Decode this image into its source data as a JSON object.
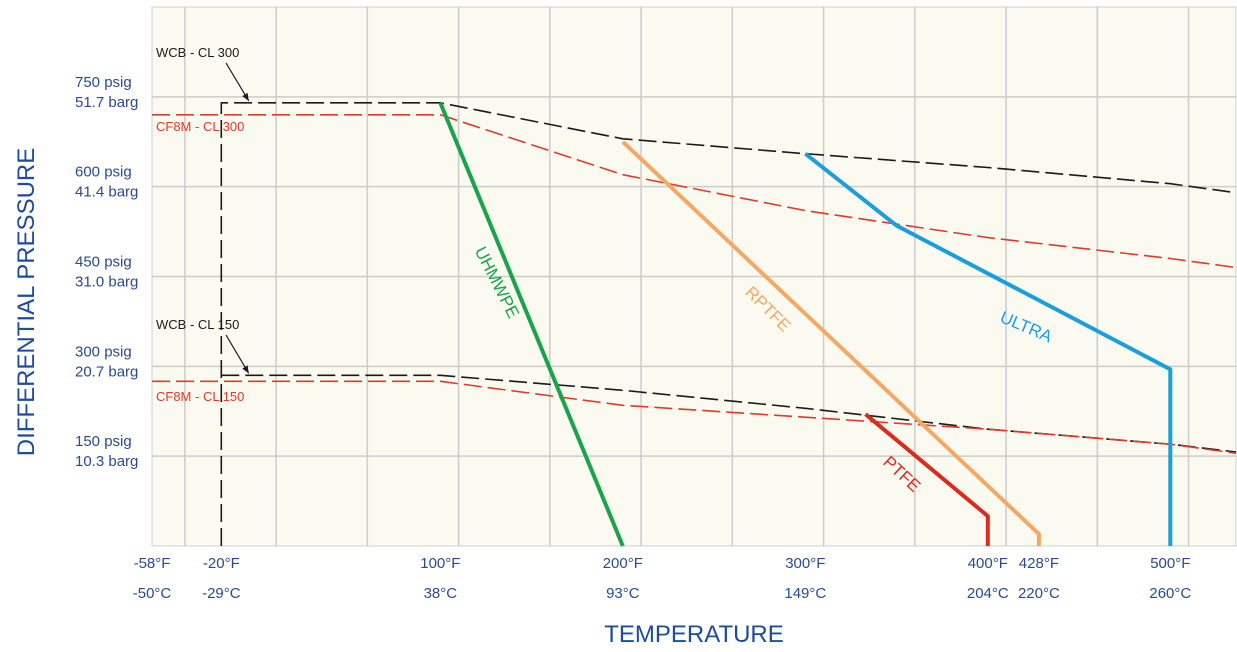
{
  "chart_data": {
    "type": "line",
    "xlabel": "TEMPERATURE",
    "ylabel": "DIFFERENTIAL PRESSURE",
    "xlim": [
      -58,
      536
    ],
    "ylim": [
      0,
      900
    ],
    "grid": true,
    "background": "#fbfaf0",
    "x_ticks": [
      {
        "value": -58,
        "f": "-58°F",
        "c": "-50°C"
      },
      {
        "value": -20,
        "f": "-20°F",
        "c": "-29°C"
      },
      {
        "value": 100,
        "f": "100°F",
        "c": "38°C"
      },
      {
        "value": 200,
        "f": "200°F",
        "c": "93°C"
      },
      {
        "value": 300,
        "f": "300°F",
        "c": "149°C"
      },
      {
        "value": 400,
        "f": "400°F",
        "c": "204°C"
      },
      {
        "value": 428,
        "f": "428°F",
        "c": "220°C"
      },
      {
        "value": 500,
        "f": "500°F",
        "c": "260°C"
      }
    ],
    "y_ticks": [
      {
        "value": 750,
        "psig": "750 psig",
        "barg": "51.7 barg"
      },
      {
        "value": 600,
        "psig": "600 psig",
        "barg": "41.4 barg"
      },
      {
        "value": 450,
        "psig": "450 psig",
        "barg": "31.0 barg"
      },
      {
        "value": 300,
        "psig": "300 psig",
        "barg": "20.7 barg"
      },
      {
        "value": 150,
        "psig": "150 psig",
        "barg": "10.3 barg"
      }
    ],
    "series": [
      {
        "name": "WCB - CL 300",
        "color": "#1a1a1a",
        "dashed": true,
        "label_side": "above",
        "x": [
          -20,
          -20,
          100,
          200,
          300,
          400,
          500,
          536
        ],
        "y": [
          0,
          740,
          740,
          680,
          655,
          632,
          605,
          590
        ]
      },
      {
        "name": "CF8M - CL 300",
        "color": "#e03a2a",
        "dashed": true,
        "label_side": "below",
        "x": [
          -58,
          100,
          200,
          300,
          400,
          500,
          536
        ],
        "y": [
          720,
          720,
          620,
          560,
          515,
          480,
          465
        ]
      },
      {
        "name": "WCB - CL 150",
        "color": "#1a1a1a",
        "dashed": true,
        "label_side": "above",
        "x": [
          -20,
          100,
          200,
          300,
          400,
          500,
          536
        ],
        "y": [
          285,
          285,
          260,
          230,
          195,
          170,
          157
        ]
      },
      {
        "name": "CF8M - CL 150",
        "color": "#e03a2a",
        "dashed": true,
        "label_side": "below",
        "x": [
          -58,
          100,
          200,
          300,
          400,
          500,
          536
        ],
        "y": [
          275,
          275,
          235,
          215,
          195,
          170,
          155
        ]
      },
      {
        "name": "UHMWPE",
        "color": "#1aa34a",
        "dashed": false,
        "x": [
          100,
          200
        ],
        "y": [
          740,
          0
        ]
      },
      {
        "name": "RPTFE",
        "color": "#f5a865",
        "dashed": false,
        "x": [
          200,
          428,
          428
        ],
        "y": [
          675,
          20,
          0
        ]
      },
      {
        "name": "ULTRA",
        "color": "#1a9fdc",
        "dashed": false,
        "x": [
          300,
          350,
          500,
          500
        ],
        "y": [
          655,
          535,
          295,
          0
        ]
      },
      {
        "name": "PTFE",
        "color": "#dc2a1e",
        "dashed": false,
        "x": [
          333,
          400,
          400
        ],
        "y": [
          220,
          50,
          0
        ]
      }
    ]
  }
}
